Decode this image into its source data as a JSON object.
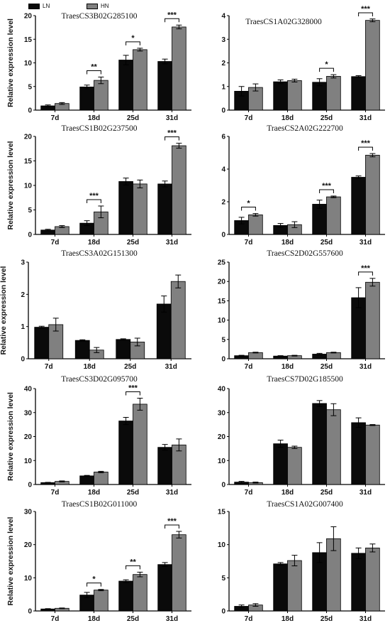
{
  "legend": {
    "items": [
      {
        "label": "LN",
        "color": "#0a0a0a"
      },
      {
        "label": "HN",
        "color": "#808080"
      }
    ]
  },
  "colors": {
    "LN": "#0a0a0a",
    "HN": "#808080"
  },
  "chart_data": [
    {
      "type": "bar",
      "title": "TraesCS3B02G285100",
      "ylabel": "Relative expression level",
      "categories": [
        "7d",
        "18d",
        "25d",
        "31d"
      ],
      "ylim": [
        0,
        20
      ],
      "yticks": [
        0,
        5,
        10,
        15,
        20
      ],
      "series": [
        {
          "name": "LN",
          "values": [
            0.9,
            4.9,
            10.6,
            10.3
          ],
          "errors": [
            0.2,
            0.4,
            1.0,
            0.5
          ]
        },
        {
          "name": "HN",
          "values": [
            1.4,
            6.3,
            12.8,
            17.6
          ],
          "errors": [
            0.2,
            0.7,
            0.3,
            0.4
          ]
        }
      ],
      "significance": [
        {
          "category": "18d",
          "label": "**"
        },
        {
          "category": "25d",
          "label": "*"
        },
        {
          "category": "31d",
          "label": "***"
        }
      ]
    },
    {
      "type": "bar",
      "title": "TraesCS1A02G328000",
      "ylabel": "",
      "categories": [
        "7d",
        "18d",
        "25d",
        "31d"
      ],
      "ylim": [
        0,
        4
      ],
      "yticks": [
        0,
        1,
        2,
        3,
        4
      ],
      "series": [
        {
          "name": "LN",
          "values": [
            0.8,
            1.2,
            1.18,
            1.42
          ],
          "errors": [
            0.2,
            0.08,
            0.15,
            0.04
          ]
        },
        {
          "name": "HN",
          "values": [
            0.96,
            1.25,
            1.43,
            3.8
          ],
          "errors": [
            0.15,
            0.06,
            0.07,
            0.06
          ]
        }
      ],
      "significance": [
        {
          "category": "25d",
          "label": "*"
        },
        {
          "category": "31d",
          "label": "***"
        }
      ]
    },
    {
      "type": "bar",
      "title": "TraesCS1B02G237500",
      "ylabel": "Relative expression level",
      "categories": [
        "7d",
        "18d",
        "25d",
        "31d"
      ],
      "ylim": [
        0,
        20
      ],
      "yticks": [
        0,
        5,
        10,
        15,
        20
      ],
      "series": [
        {
          "name": "LN",
          "values": [
            0.9,
            2.3,
            10.8,
            10.3
          ],
          "errors": [
            0.15,
            0.5,
            0.7,
            0.6
          ]
        },
        {
          "name": "HN",
          "values": [
            1.6,
            4.6,
            10.3,
            18.1
          ],
          "errors": [
            0.2,
            1.2,
            0.8,
            0.5
          ]
        }
      ],
      "significance": [
        {
          "category": "18d",
          "label": "***"
        },
        {
          "category": "31d",
          "label": "***"
        }
      ]
    },
    {
      "type": "bar",
      "title": "TraesCS2A02G222700",
      "ylabel": "",
      "categories": [
        "7d",
        "18d",
        "25d",
        "31d"
      ],
      "ylim": [
        0,
        6
      ],
      "yticks": [
        0,
        2,
        4,
        6
      ],
      "series": [
        {
          "name": "LN",
          "values": [
            0.85,
            0.55,
            1.85,
            3.5
          ],
          "errors": [
            0.2,
            0.12,
            0.25,
            0.08
          ]
        },
        {
          "name": "HN",
          "values": [
            1.2,
            0.6,
            2.3,
            4.85
          ],
          "errors": [
            0.08,
            0.18,
            0.05,
            0.1
          ]
        }
      ],
      "significance": [
        {
          "category": "7d",
          "label": "*"
        },
        {
          "category": "25d",
          "label": "***"
        },
        {
          "category": "31d",
          "label": "***"
        }
      ]
    },
    {
      "type": "bar",
      "title": "TraesCS3A02G151300",
      "ylabel": "Relative expression level",
      "categories": [
        "7d",
        "18d",
        "25d",
        "31d"
      ],
      "ylim": [
        0,
        3
      ],
      "yticks": [
        0,
        1,
        2,
        3
      ],
      "series": [
        {
          "name": "LN",
          "values": [
            0.98,
            0.57,
            0.6,
            1.7
          ],
          "errors": [
            0.03,
            0.02,
            0.02,
            0.25
          ]
        },
        {
          "name": "HN",
          "values": [
            1.06,
            0.27,
            0.52,
            2.4
          ],
          "errors": [
            0.2,
            0.08,
            0.12,
            0.2
          ]
        }
      ],
      "significance": []
    },
    {
      "type": "bar",
      "title": "TraesCS2D02G557600",
      "ylabel": "",
      "categories": [
        "7d",
        "18d",
        "25d",
        "31d"
      ],
      "ylim": [
        0,
        25
      ],
      "yticks": [
        0,
        5,
        10,
        15,
        20,
        25
      ],
      "series": [
        {
          "name": "LN",
          "values": [
            0.8,
            0.7,
            1.2,
            15.8
          ],
          "errors": [
            0.1,
            0.1,
            0.2,
            2.6
          ]
        },
        {
          "name": "HN",
          "values": [
            1.6,
            0.8,
            1.6,
            19.8
          ],
          "errors": [
            0.1,
            0.1,
            0.1,
            1.0
          ]
        }
      ],
      "significance": [
        {
          "category": "31d",
          "label": "***"
        }
      ]
    },
    {
      "type": "bar",
      "title": "TraesCS3D02G095700",
      "ylabel": "Relative expression level",
      "categories": [
        "7d",
        "18d",
        "25d",
        "31d"
      ],
      "ylim": [
        0,
        40
      ],
      "yticks": [
        0,
        10,
        20,
        30,
        40
      ],
      "series": [
        {
          "name": "LN",
          "values": [
            0.8,
            3.6,
            26.5,
            15.5
          ],
          "errors": [
            0.1,
            0.2,
            1.5,
            1.2
          ]
        },
        {
          "name": "HN",
          "values": [
            1.3,
            5.2,
            33.5,
            16.5
          ],
          "errors": [
            0.2,
            0.3,
            2.5,
            2.5
          ]
        }
      ],
      "significance": [
        {
          "category": "25d",
          "label": "***"
        }
      ]
    },
    {
      "type": "bar",
      "title": "TraesCS7D02G185500",
      "ylabel": "",
      "categories": [
        "7d",
        "18d",
        "25d",
        "31d"
      ],
      "ylim": [
        0,
        40
      ],
      "yticks": [
        0,
        10,
        20,
        30,
        40
      ],
      "series": [
        {
          "name": "LN",
          "values": [
            1.0,
            17.0,
            33.8,
            25.8
          ],
          "errors": [
            0.3,
            1.5,
            1.2,
            2.0
          ]
        },
        {
          "name": "HN",
          "values": [
            0.8,
            15.5,
            31.2,
            24.8
          ],
          "errors": [
            0.2,
            0.5,
            2.5,
            0.2
          ]
        }
      ],
      "significance": []
    },
    {
      "type": "bar",
      "title": "TraesCS1B02G011000",
      "ylabel": "Relative expression level",
      "categories": [
        "7d",
        "18d",
        "25d",
        "31d"
      ],
      "ylim": [
        0,
        30
      ],
      "yticks": [
        0,
        10,
        20,
        30
      ],
      "series": [
        {
          "name": "LN",
          "values": [
            0.6,
            4.8,
            9.0,
            14.0
          ],
          "errors": [
            0.1,
            0.8,
            0.4,
            0.6
          ]
        },
        {
          "name": "HN",
          "values": [
            0.8,
            6.3,
            11.0,
            23.0
          ],
          "errors": [
            0.1,
            0.2,
            0.7,
            1.0
          ]
        }
      ],
      "significance": [
        {
          "category": "18d",
          "label": "*"
        },
        {
          "category": "25d",
          "label": "**"
        },
        {
          "category": "31d",
          "label": "***"
        }
      ]
    },
    {
      "type": "bar",
      "title": "TraesCS1A02G007400",
      "ylabel": "",
      "categories": [
        "7d",
        "18d",
        "25d",
        "31d"
      ],
      "ylim": [
        0,
        15
      ],
      "yticks": [
        0,
        5,
        10,
        15
      ],
      "series": [
        {
          "name": "LN",
          "values": [
            0.7,
            7.1,
            8.8,
            8.7
          ],
          "errors": [
            0.2,
            0.2,
            1.5,
            0.8
          ]
        },
        {
          "name": "HN",
          "values": [
            0.9,
            7.6,
            10.9,
            9.5
          ],
          "errors": [
            0.2,
            0.8,
            1.8,
            0.6
          ]
        }
      ],
      "significance": []
    }
  ]
}
